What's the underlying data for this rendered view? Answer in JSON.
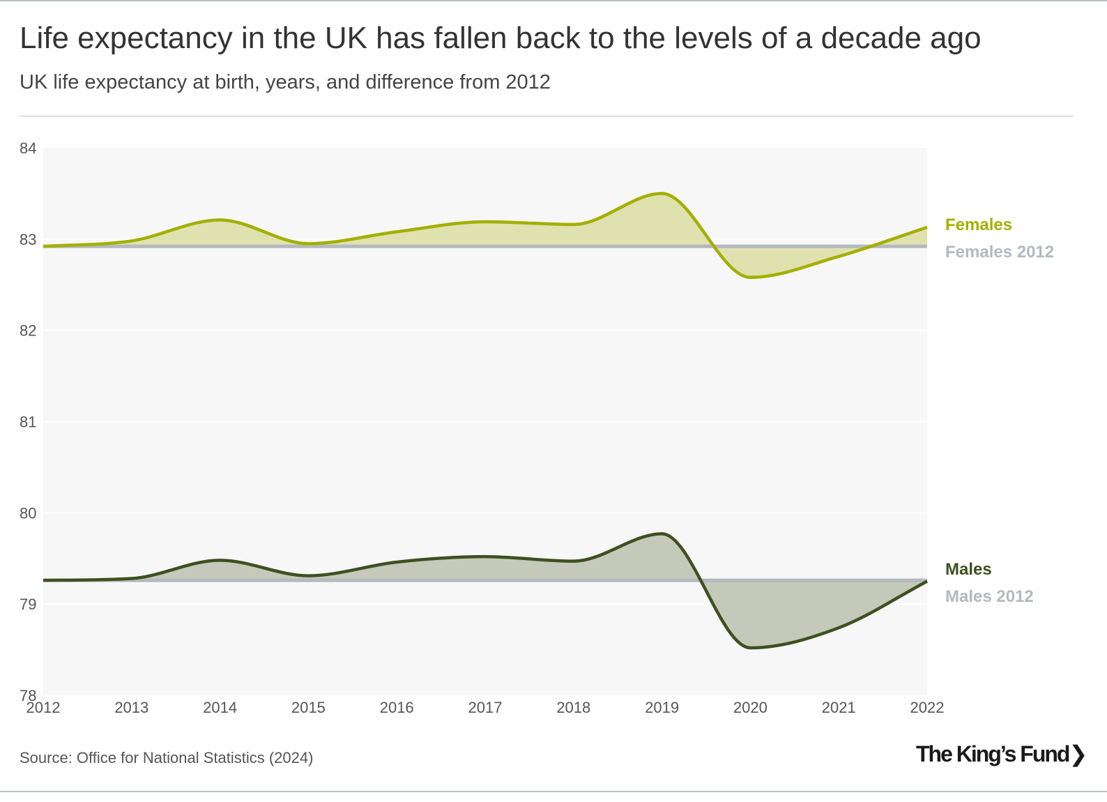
{
  "title": "Life expectancy in the UK has fallen back to the levels of a decade ago",
  "subtitle": "UK life expectancy at birth, years, and difference from 2012",
  "source": "Source: Office for National Statistics (2024)",
  "logo": "The King's Fund",
  "chart_data": {
    "type": "area",
    "x": [
      2012,
      2013,
      2014,
      2015,
      2016,
      2017,
      2018,
      2019,
      2020,
      2021,
      2022
    ],
    "xticks": [
      "2012",
      "2013",
      "2014",
      "2015",
      "2016",
      "2017",
      "2018",
      "2019",
      "2020",
      "2021",
      "2022"
    ],
    "yticks": [
      "78",
      "79",
      "80",
      "81",
      "82",
      "83",
      "84"
    ],
    "ylim": [
      78,
      84
    ],
    "xlim": [
      2012,
      2022
    ],
    "grid": true,
    "series": [
      {
        "name": "Females",
        "color": "#a3b000",
        "fill": "#dde0ab",
        "baseline_label": "Females 2012",
        "baseline": 82.92,
        "values": [
          82.92,
          82.98,
          83.21,
          82.95,
          83.08,
          83.19,
          83.16,
          83.5,
          82.58,
          82.81,
          83.13
        ]
      },
      {
        "name": "Males",
        "color": "#3e5020",
        "fill": "#c2c6b5",
        "baseline_label": "Males 2012",
        "baseline": 79.26,
        "values": [
          79.26,
          79.28,
          79.48,
          79.31,
          79.46,
          79.52,
          79.47,
          79.77,
          78.52,
          78.74,
          79.25
        ]
      }
    ],
    "baseline_color": "#b3b9be",
    "legend": "right"
  }
}
